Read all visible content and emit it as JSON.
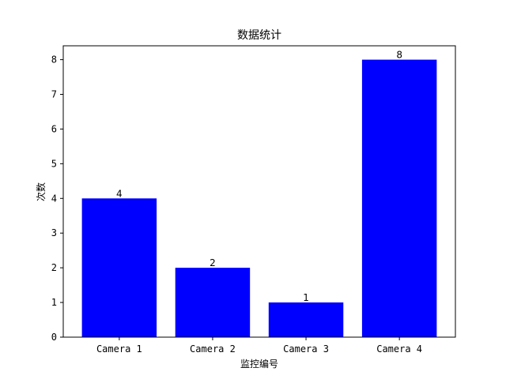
{
  "chart_data": {
    "type": "bar",
    "title": "数据统计",
    "xlabel": "监控编号",
    "ylabel": "次数",
    "categories": [
      "Camera 1",
      "Camera 2",
      "Camera 3",
      "Camera 4"
    ],
    "values": [
      4,
      2,
      1,
      8
    ],
    "data_labels": [
      "4",
      "2",
      "1",
      "8"
    ],
    "ylim": [
      0,
      8.4
    ],
    "yticks": [
      "0",
      "1",
      "2",
      "3",
      "4",
      "5",
      "6",
      "7",
      "8"
    ],
    "bar_color": "#0000ff",
    "grid": false,
    "legend": "none"
  }
}
